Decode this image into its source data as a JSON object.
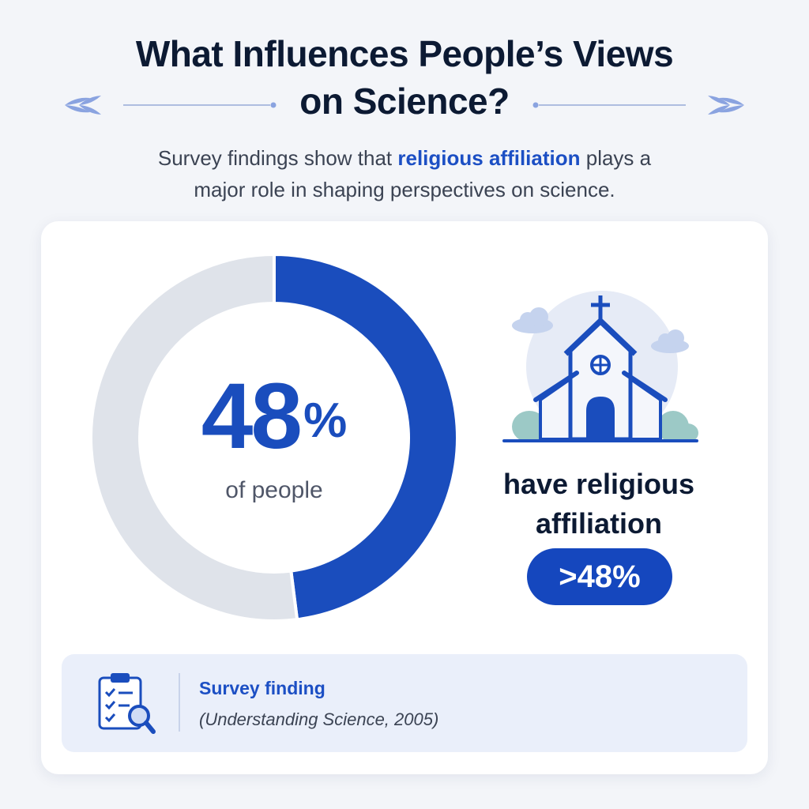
{
  "title": {
    "line1": "What Influences People’s Views",
    "line2": "on Science?"
  },
  "subtitle": {
    "before": "Survey findings show that ",
    "highlight": "religious affiliation",
    "after_line1": " plays a",
    "line2": "major role in shaping perspectives on science."
  },
  "chart_data": {
    "type": "pie",
    "values": [
      48,
      52
    ],
    "center_value": "48",
    "center_unit": "%",
    "center_label": "of people"
  },
  "stat": {
    "line1": "have religious",
    "line2": "affiliation",
    "badge": ">48%"
  },
  "source": {
    "title": "Survey finding",
    "citation": "(Understanding Science, 2005)"
  },
  "colors": {
    "accent": "#1a4dbd",
    "track": "#dfe3ea",
    "background": "#f3f5f9"
  },
  "icons": [
    "leaf-ornament-icon",
    "church-icon",
    "cloud-icon",
    "bush-icon",
    "clipboard-search-icon"
  ]
}
